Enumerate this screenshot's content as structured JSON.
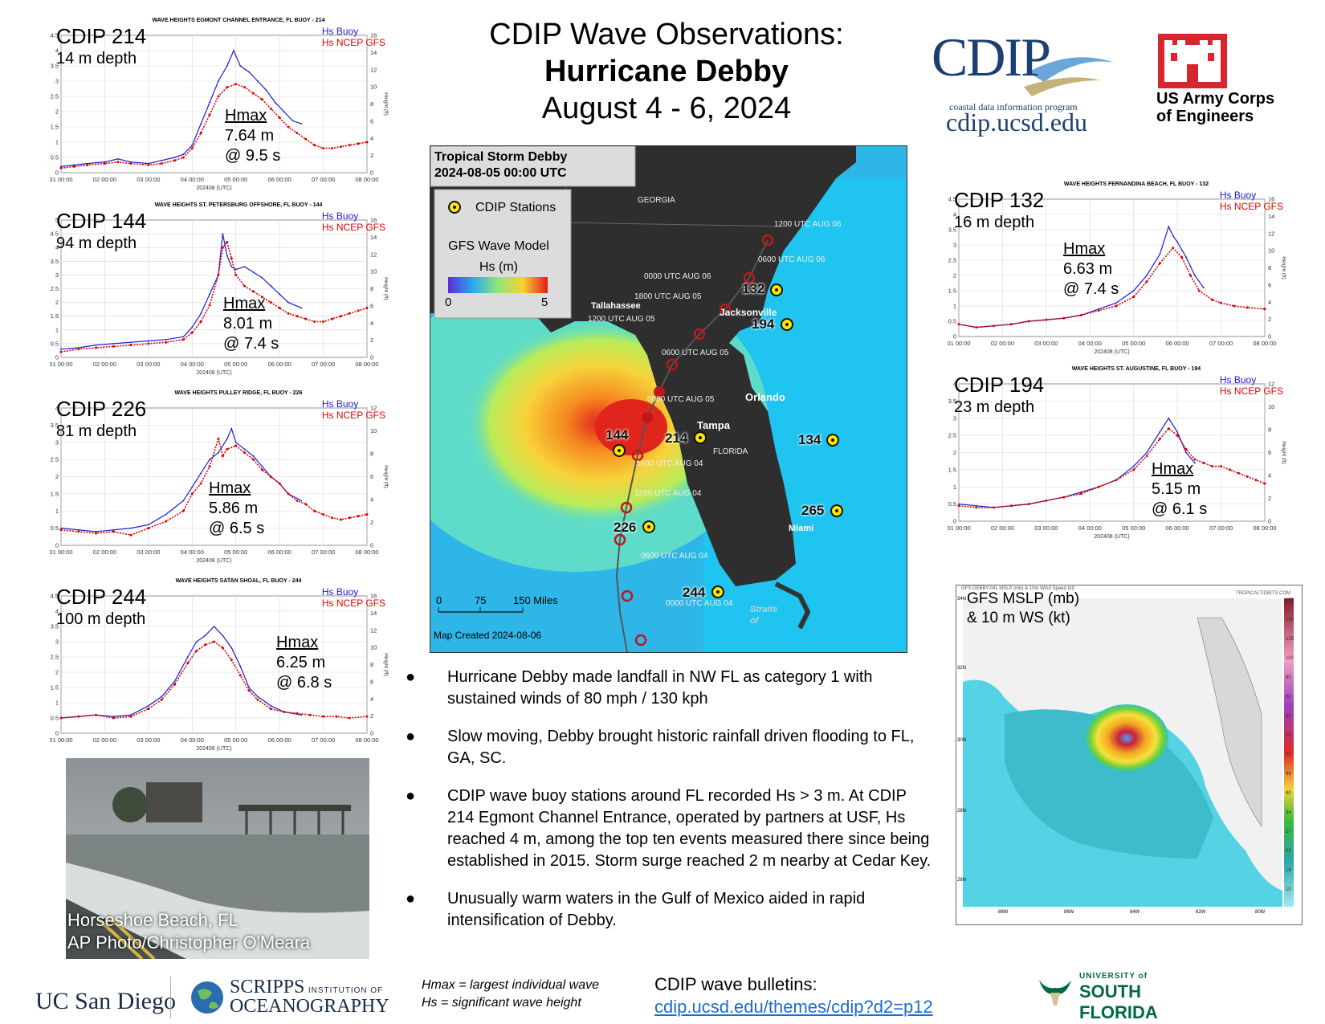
{
  "title": {
    "line1": "CDIP Wave Observations:",
    "line2": "Hurricane Debby",
    "line3": "August 4 - 6, 2024"
  },
  "logos": {
    "cdip_name": "CDIP",
    "cdip_tagline": "coastal data information program",
    "cdip_url": "cdip.ucsd.edu",
    "usace_line1": "US Army Corps",
    "usace_line2": "of Engineers",
    "ucsd": "UC San Diego",
    "scripps_line1": "SCRIPPS",
    "scripps_small": "INSTITUTION OF",
    "scripps_line2": "OCEANOGRAPHY",
    "usf_small": "UNIVERSITY of",
    "usf_big": "SOUTH FLORIDA"
  },
  "legend": {
    "buoy": "Hs Buoy",
    "model": "Hs NCEP GFS"
  },
  "axis_common": {
    "xticks": [
      "01 00:00",
      "02 00:00",
      "03 00:00",
      "04 00:00",
      "05 00:00",
      "06 00:00",
      "07 00:00",
      "08 00:00"
    ],
    "xlabel": "202408 (UTC)",
    "ylabel_left": "Height (m)",
    "ylabel_right": "Height (ft)"
  },
  "panels": [
    {
      "id": "214",
      "label": "CDIP 214",
      "depth": "14 m depth",
      "plot_title": "WAVE HEIGHTS EGMONT CHANNEL ENTRANCE, FL BUOY - 214",
      "hmax_label": "Hmax",
      "hmax_value": "7.64 m",
      "hmax_period": "@ 9.5 s"
    },
    {
      "id": "144",
      "label": "CDIP 144",
      "depth": "94 m depth",
      "plot_title": "WAVE HEIGHTS ST. PETERSBURG OFFSHORE, FL BUOY - 144",
      "hmax_label": "Hmax",
      "hmax_value": "8.01 m",
      "hmax_period": "@ 7.4 s"
    },
    {
      "id": "226",
      "label": "CDIP 226",
      "depth": "81 m depth",
      "plot_title": "WAVE HEIGHTS PULLEY RIDGE, FL BUOY - 226",
      "hmax_label": "Hmax",
      "hmax_value": "5.86 m",
      "hmax_period": "@ 6.5 s"
    },
    {
      "id": "244",
      "label": "CDIP 244",
      "depth": "100 m depth",
      "plot_title": "WAVE HEIGHTS SATAN SHOAL, FL BUOY - 244",
      "hmax_label": "Hmax",
      "hmax_value": "6.25 m",
      "hmax_period": "@ 6.8 s"
    },
    {
      "id": "132",
      "label": "CDIP 132",
      "depth": "16 m depth",
      "plot_title": "WAVE HEIGHTS FERNANDINA BEACH, FL BUOY - 132",
      "hmax_label": "Hmax",
      "hmax_value": "6.63 m",
      "hmax_period": "@ 7.4 s"
    },
    {
      "id": "194",
      "label": "CDIP 194",
      "depth": "23 m depth",
      "plot_title": "WAVE HEIGHTS ST. AUGUSTINE, FL BUOY - 194",
      "hmax_label": "Hmax",
      "hmax_value": "5.15 m",
      "hmax_period": "@ 6.1 s"
    }
  ],
  "chart_data": [
    {
      "type": "line",
      "title": "WAVE HEIGHTS EGMONT CHANNEL ENTRANCE, FL BUOY - 214",
      "xlabel": "202408 (UTC)",
      "ylabel": "Height (m)",
      "ylim": [
        0,
        4.5
      ],
      "xlim": [
        1,
        8
      ],
      "yticks": [
        0,
        0.5,
        1,
        1.5,
        2,
        2.5,
        3,
        3.5,
        4,
        4.5
      ],
      "y2ticks": [
        0,
        2,
        4,
        6,
        8,
        10,
        12,
        14,
        16
      ],
      "series": [
        {
          "name": "Hs Buoy",
          "color": "#1b1bd8",
          "x": [
            1.0,
            1.3,
            1.6,
            2.0,
            2.3,
            2.6,
            3.0,
            3.3,
            3.6,
            3.8,
            4.0,
            4.2,
            4.4,
            4.6,
            4.8,
            4.95,
            5.1,
            5.3,
            5.5,
            5.7,
            5.9,
            6.1,
            6.3,
            6.5
          ],
          "y": [
            0.2,
            0.25,
            0.3,
            0.35,
            0.45,
            0.35,
            0.3,
            0.4,
            0.5,
            0.6,
            0.9,
            1.6,
            2.3,
            3.0,
            3.5,
            4.0,
            3.5,
            3.3,
            3.0,
            2.7,
            2.3,
            2.0,
            1.7,
            1.6
          ]
        },
        {
          "name": "Hs NCEP GFS",
          "color": "#e00000",
          "x": [
            1.0,
            1.3,
            1.6,
            2.0,
            2.3,
            2.6,
            3.0,
            3.3,
            3.6,
            3.8,
            4.0,
            4.2,
            4.4,
            4.6,
            4.8,
            5.0,
            5.2,
            5.4,
            5.6,
            5.8,
            6.0,
            6.2,
            6.4,
            6.6,
            6.8,
            7.0,
            7.2,
            7.4,
            7.6,
            7.8,
            8.0
          ],
          "y": [
            0.15,
            0.2,
            0.25,
            0.3,
            0.35,
            0.3,
            0.25,
            0.3,
            0.4,
            0.5,
            0.8,
            1.3,
            1.9,
            2.5,
            2.8,
            2.9,
            2.8,
            2.6,
            2.4,
            2.1,
            1.8,
            1.5,
            1.3,
            1.1,
            0.9,
            0.8,
            0.8,
            0.85,
            0.9,
            0.95,
            1.0
          ]
        }
      ]
    },
    {
      "type": "line",
      "title": "WAVE HEIGHTS ST. PETERSBURG OFFSHORE, FL BUOY - 144",
      "xlabel": "202408 (UTC)",
      "ylabel": "Height (m)",
      "ylim": [
        0,
        5
      ],
      "xlim": [
        1,
        8
      ],
      "yticks": [
        0,
        0.5,
        1,
        1.5,
        2,
        2.5,
        3,
        3.5,
        4,
        4.5,
        5
      ],
      "y2ticks": [
        0,
        2,
        4,
        6,
        8,
        10,
        12,
        14,
        16
      ],
      "series": [
        {
          "name": "Hs Buoy",
          "color": "#1b1bd8",
          "x": [
            1.0,
            1.4,
            1.8,
            2.2,
            2.6,
            3.0,
            3.4,
            3.8,
            4.0,
            4.2,
            4.4,
            4.6,
            4.7,
            4.8,
            4.9,
            5.0,
            5.2,
            5.4,
            5.6,
            5.8,
            6.0,
            6.2,
            6.5
          ],
          "y": [
            0.3,
            0.35,
            0.45,
            0.5,
            0.55,
            0.6,
            0.65,
            0.75,
            1.1,
            1.6,
            2.3,
            3.0,
            4.5,
            3.7,
            3.3,
            3.2,
            3.3,
            3.1,
            2.9,
            2.6,
            2.3,
            2.0,
            1.8
          ]
        },
        {
          "name": "Hs NCEP GFS",
          "color": "#e00000",
          "x": [
            1.0,
            1.4,
            1.8,
            2.2,
            2.6,
            3.0,
            3.4,
            3.8,
            4.0,
            4.2,
            4.4,
            4.6,
            4.7,
            4.8,
            4.9,
            5.0,
            5.2,
            5.4,
            5.6,
            5.8,
            6.0,
            6.2,
            6.4,
            6.6,
            6.8,
            7.0,
            7.2,
            7.4,
            7.6,
            7.8,
            8.0
          ],
          "y": [
            0.2,
            0.3,
            0.35,
            0.4,
            0.45,
            0.5,
            0.55,
            0.65,
            0.9,
            1.3,
            1.9,
            3.0,
            4.0,
            4.2,
            3.6,
            3.0,
            2.6,
            2.4,
            2.2,
            2.0,
            1.8,
            1.6,
            1.5,
            1.4,
            1.3,
            1.3,
            1.4,
            1.5,
            1.6,
            1.7,
            1.8
          ]
        }
      ]
    },
    {
      "type": "line",
      "title": "WAVE HEIGHTS PULLEY RIDGE, FL BUOY - 226",
      "xlabel": "202408 (UTC)",
      "ylabel": "Height (m)",
      "ylim": [
        0,
        4
      ],
      "xlim": [
        1,
        8
      ],
      "yticks": [
        0,
        0.5,
        1,
        1.5,
        2,
        2.5,
        3,
        3.5,
        4
      ],
      "y2ticks": [
        0,
        2,
        4,
        6,
        8,
        10,
        12
      ],
      "series": [
        {
          "name": "Hs Buoy",
          "color": "#1b1bd8",
          "x": [
            1.0,
            1.4,
            1.8,
            2.2,
            2.6,
            3.0,
            3.4,
            3.8,
            4.0,
            4.2,
            4.4,
            4.6,
            4.8,
            4.9,
            5.0,
            5.2,
            5.4,
            5.6,
            5.8,
            6.0,
            6.2,
            6.5
          ],
          "y": [
            0.5,
            0.45,
            0.4,
            0.45,
            0.5,
            0.6,
            0.9,
            1.3,
            1.7,
            2.1,
            2.5,
            2.7,
            3.1,
            3.4,
            3.0,
            2.8,
            2.6,
            2.3,
            2.0,
            1.8,
            1.5,
            1.3
          ]
        },
        {
          "name": "Hs NCEP GFS",
          "color": "#e00000",
          "x": [
            1.0,
            1.4,
            1.8,
            2.2,
            2.6,
            3.0,
            3.4,
            3.8,
            4.0,
            4.2,
            4.4,
            4.6,
            4.7,
            4.8,
            5.0,
            5.2,
            5.4,
            5.6,
            5.8,
            6.0,
            6.2,
            6.4,
            6.6,
            6.8,
            7.0,
            7.2,
            7.4,
            7.6,
            7.8,
            8.0
          ],
          "y": [
            0.45,
            0.4,
            0.35,
            0.4,
            0.3,
            0.5,
            0.7,
            1.0,
            1.5,
            1.8,
            2.3,
            3.1,
            2.6,
            2.8,
            2.9,
            2.7,
            2.5,
            2.2,
            2.0,
            1.8,
            1.5,
            1.3,
            1.2,
            1.0,
            0.9,
            0.8,
            0.75,
            0.8,
            0.85,
            0.9
          ]
        }
      ]
    },
    {
      "type": "line",
      "title": "WAVE HEIGHTS SATAN SHOAL, FL BUOY - 244",
      "xlabel": "202408 (UTC)",
      "ylabel": "Height (m)",
      "ylim": [
        0,
        4.5
      ],
      "xlim": [
        1,
        8
      ],
      "yticks": [
        0,
        0.5,
        1,
        1.5,
        2,
        2.5,
        3,
        3.5,
        4,
        4.5
      ],
      "y2ticks": [
        0,
        2,
        4,
        6,
        8,
        10,
        12,
        14,
        16
      ],
      "series": [
        {
          "name": "Hs Buoy",
          "color": "#1b1bd8",
          "x": [
            1.0,
            1.4,
            1.8,
            2.2,
            2.6,
            3.0,
            3.3,
            3.6,
            3.9,
            4.1,
            4.3,
            4.5,
            4.7,
            4.9,
            5.1,
            5.3,
            5.5,
            5.8,
            6.1,
            6.5
          ],
          "y": [
            0.5,
            0.55,
            0.6,
            0.55,
            0.6,
            0.9,
            1.2,
            1.7,
            2.5,
            3.0,
            3.2,
            3.5,
            3.2,
            2.8,
            2.2,
            1.5,
            1.2,
            0.9,
            0.7,
            0.6
          ]
        },
        {
          "name": "Hs NCEP GFS",
          "color": "#e00000",
          "x": [
            1.0,
            1.4,
            1.8,
            2.2,
            2.6,
            3.0,
            3.3,
            3.6,
            3.9,
            4.1,
            4.3,
            4.5,
            4.7,
            4.9,
            5.1,
            5.3,
            5.5,
            5.8,
            6.1,
            6.4,
            6.7,
            7.0,
            7.3,
            7.6,
            8.0
          ],
          "y": [
            0.5,
            0.55,
            0.6,
            0.5,
            0.55,
            0.8,
            1.1,
            1.6,
            2.3,
            2.7,
            2.9,
            3.0,
            2.8,
            2.4,
            1.9,
            1.4,
            1.1,
            0.8,
            0.7,
            0.65,
            0.6,
            0.55,
            0.55,
            0.5,
            0.55
          ]
        }
      ]
    },
    {
      "type": "line",
      "title": "WAVE HEIGHTS FERNANDINA BEACH, FL BUOY - 132",
      "xlabel": "202408 (UTC)",
      "ylabel": "Height (m)",
      "ylim": [
        0,
        4.5
      ],
      "xlim": [
        1,
        8
      ],
      "yticks": [
        0,
        0.5,
        1,
        1.5,
        2,
        2.5,
        3,
        3.5,
        4,
        4.5
      ],
      "y2ticks": [
        0,
        2,
        4,
        6,
        8,
        10,
        12,
        14,
        16
      ],
      "series": [
        {
          "name": "Hs Buoy",
          "color": "#1b1bd8",
          "x": [
            1.0,
            1.4,
            1.8,
            2.2,
            2.6,
            3.0,
            3.4,
            3.8,
            4.2,
            4.6,
            5.0,
            5.3,
            5.6,
            5.8,
            5.9,
            6.0,
            6.2,
            6.4,
            6.6
          ],
          "y": [
            0.4,
            0.3,
            0.35,
            0.4,
            0.5,
            0.55,
            0.6,
            0.7,
            0.9,
            1.1,
            1.5,
            2.0,
            2.7,
            3.6,
            3.3,
            3.1,
            2.6,
            2.0,
            1.6
          ]
        },
        {
          "name": "Hs NCEP GFS",
          "color": "#e00000",
          "x": [
            1.0,
            1.4,
            1.8,
            2.2,
            2.6,
            3.0,
            3.4,
            3.8,
            4.2,
            4.6,
            5.0,
            5.3,
            5.6,
            5.9,
            6.1,
            6.3,
            6.5,
            6.8,
            7.0,
            7.3,
            7.6,
            8.0
          ],
          "y": [
            0.4,
            0.3,
            0.35,
            0.4,
            0.5,
            0.55,
            0.6,
            0.7,
            0.85,
            1.0,
            1.3,
            1.8,
            2.4,
            2.9,
            2.6,
            2.0,
            1.5,
            1.2,
            1.1,
            1.0,
            0.95,
            0.9
          ]
        }
      ]
    },
    {
      "type": "line",
      "title": "WAVE HEIGHTS ST. AUGUSTINE, FL BUOY - 194",
      "xlabel": "202408 (UTC)",
      "ylabel": "Height (m)",
      "ylim": [
        0,
        4
      ],
      "xlim": [
        1,
        8
      ],
      "yticks": [
        0,
        0.5,
        1,
        1.5,
        2,
        2.5,
        3,
        3.5,
        4
      ],
      "y2ticks": [
        0,
        2,
        4,
        6,
        8,
        10,
        12
      ],
      "series": [
        {
          "name": "Hs Buoy",
          "color": "#1b1bd8",
          "x": [
            1.0,
            1.4,
            1.8,
            2.2,
            2.6,
            3.0,
            3.4,
            3.8,
            4.2,
            4.6,
            5.0,
            5.3,
            5.6,
            5.8,
            6.0,
            6.2,
            6.4
          ],
          "y": [
            0.5,
            0.45,
            0.4,
            0.45,
            0.5,
            0.6,
            0.7,
            0.85,
            1.0,
            1.2,
            1.6,
            2.0,
            2.6,
            3.0,
            2.6,
            2.0,
            1.7
          ]
        },
        {
          "name": "Hs NCEP GFS",
          "color": "#e00000",
          "x": [
            1.0,
            1.4,
            1.8,
            2.2,
            2.6,
            3.0,
            3.4,
            3.8,
            4.2,
            4.6,
            5.0,
            5.3,
            5.6,
            5.8,
            6.0,
            6.2,
            6.4,
            6.6,
            6.8,
            7.0,
            7.2,
            7.4,
            7.6,
            7.8,
            8.0
          ],
          "y": [
            0.45,
            0.4,
            0.4,
            0.45,
            0.5,
            0.6,
            0.7,
            0.8,
            1.0,
            1.2,
            1.5,
            1.9,
            2.4,
            2.7,
            2.5,
            2.1,
            1.8,
            1.7,
            1.6,
            1.6,
            1.5,
            1.4,
            1.3,
            1.2,
            1.1
          ]
        }
      ]
    }
  ],
  "map": {
    "title_line1": "Tropical Storm Debby",
    "title_line2": "2024-08-05 00:00 UTC",
    "legend_stations": "CDIP Stations",
    "legend_model_line1": "GFS Wave Model",
    "legend_model_line2": "Hs (m)",
    "cbar_min": "0",
    "cbar_max": "5",
    "scale_0": "0",
    "scale_75": "75",
    "scale_150": "150 Miles",
    "credit": "Map Created 2024-08-06",
    "places": {
      "georgia": "GEORGIA",
      "florida": "FLORIDA",
      "tallahassee": "Tallahassee",
      "jacksonville": "Jacksonville",
      "orlando": "Orlando",
      "tampa": "Tampa",
      "miami": "Miami",
      "straits": "Straits of"
    },
    "track_labels": [
      "1200 UTC AUG 06",
      "0600 UTC AUG 06",
      "0000 UTC AUG 06",
      "1800 UTC AUG 05",
      "1200 UTC AUG 05",
      "0600 UTC AUG 05",
      "0000 UTC AUG 05",
      "1800 UTC AUG 04",
      "1200 UTC AUG 04",
      "0600 UTC AUG 04",
      "0000 UTC AUG 04"
    ],
    "stations": [
      "132",
      "194",
      "214",
      "144",
      "134",
      "265",
      "226",
      "244"
    ]
  },
  "bullets": [
    "Hurricane Debby made landfall in NW FL as category 1 with sustained winds of 80 mph / 130 kph",
    "Slow moving, Debby brought historic rainfall driven flooding to FL, GA, SC.",
    "CDIP wave buoy stations around FL recorded Hs > 3 m.  At CDIP 214 Egmont Channel Entrance, operated by partners at USF, Hs reached 4 m, among the top ten events measured there since being established in 2015. Storm surge reached 2 m nearby at Cedar Key.",
    "Unusually warm waters in the Gulf of Mexico aided in rapid intensification of Debby."
  ],
  "bullet_glyph": "●",
  "definitions": {
    "hmax": "Hmax = largest individual wave",
    "hs": "Hs = significant wave height"
  },
  "bulletins": {
    "label": "CDIP wave bulletins:",
    "link": "cdip.ucsd.edu/themes/cdip?d2=p12"
  },
  "photo": {
    "caption_line1": "Horseshoe Beach, FL",
    "caption_line2": "AP Photo/Christopher O'Meara"
  },
  "gfs": {
    "caption_line1": "GFS MSLP (mb)",
    "caption_line2": "& 10 m WS (kt)",
    "header": "GFS DEBBY-04L MSLP (mb) & 10m Wind Speed (kt)",
    "header_right": "TROPICALTIDBITS.COM",
    "lat_labels": [
      "34N",
      "32N",
      "30N",
      "28N",
      "26N"
    ],
    "lon_labels": [
      "88W",
      "86W",
      "84W",
      "82W",
      "80W"
    ],
    "scale_labels": [
      "155",
      "140",
      "125",
      "110",
      "95",
      "80",
      "64",
      "58",
      "52",
      "46",
      "40",
      "34",
      "27",
      "22",
      "16",
      "10"
    ]
  }
}
